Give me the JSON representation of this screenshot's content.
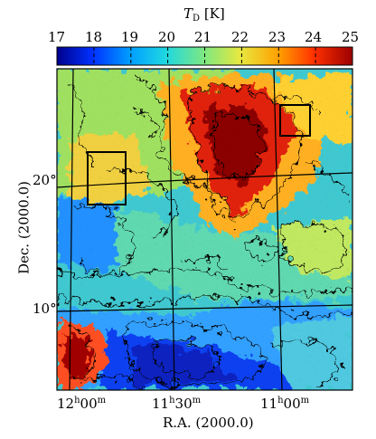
{
  "colorbar": {
    "title_main": "T",
    "title_sub": "D",
    "title_unit": "[K]",
    "ticks": [
      "17",
      "18",
      "19",
      "20",
      "21",
      "22",
      "23",
      "24",
      "25"
    ],
    "colors": [
      "#00008b",
      "#0030ff",
      "#00a0ff",
      "#20d8e0",
      "#80e880",
      "#e8e840",
      "#ffa000",
      "#ff3000",
      "#9b0000"
    ]
  },
  "axes": {
    "xlabel": "R.A. (2000.0)",
    "ylabel": "Dec. (2000.0)",
    "x_ticks": [
      {
        "h": "12",
        "hu": "h",
        "m": "00",
        "mu": "m"
      },
      {
        "h": "11",
        "hu": "h",
        "m": "30",
        "mu": "m"
      },
      {
        "h": "11",
        "hu": "h",
        "m": "00",
        "mu": "m"
      }
    ],
    "y_ticks": [
      "20°",
      "10°"
    ]
  },
  "map": {
    "description_colors": {
      "cold": "#1a4cff",
      "mid": "#30c8d8",
      "warm": "#ffcc20",
      "hot": "#c81010"
    }
  }
}
